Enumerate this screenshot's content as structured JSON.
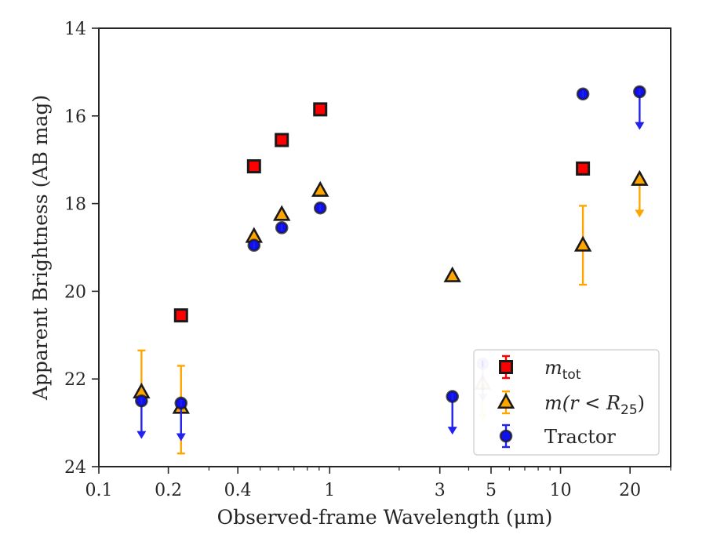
{
  "chart_data": {
    "type": "scatter",
    "xlabel": "Observed-frame Wavelength (μm)",
    "ylabel": "Apparent Brightness (AB mag)",
    "xscale": "log",
    "xlim": [
      0.1,
      30
    ],
    "ylim": [
      24,
      14
    ],
    "y_inverted": true,
    "xticks": [
      {
        "value": 0.1,
        "label": "0.1"
      },
      {
        "value": 0.2,
        "label": "0.2"
      },
      {
        "value": 0.4,
        "label": "0.4"
      },
      {
        "value": 1,
        "label": "1"
      },
      {
        "value": 3,
        "label": "3"
      },
      {
        "value": 5,
        "label": "5"
      },
      {
        "value": 10,
        "label": "10"
      },
      {
        "value": 20,
        "label": "20"
      }
    ],
    "yticks": [
      {
        "value": 14,
        "label": "14"
      },
      {
        "value": 16,
        "label": "16"
      },
      {
        "value": 18,
        "label": "18"
      },
      {
        "value": 20,
        "label": "20"
      },
      {
        "value": 22,
        "label": "22"
      },
      {
        "value": 24,
        "label": "24"
      }
    ],
    "legend_position": "lower-right",
    "series": [
      {
        "name": "m_tot",
        "legend_main": "m",
        "legend_sub": "tot",
        "marker": "square",
        "face_color": "#ff0000",
        "edge_color": "#1a1a1a",
        "error_color": "#ff0000",
        "points": [
          {
            "x": 0.227,
            "y": 20.55
          },
          {
            "x": 0.47,
            "y": 17.15
          },
          {
            "x": 0.62,
            "y": 16.55
          },
          {
            "x": 0.91,
            "y": 15.85
          },
          {
            "x": 12.5,
            "y": 17.2
          }
        ]
      },
      {
        "name": "m(r<R_25)",
        "legend_main": "m(r < R",
        "legend_sub": "25",
        "legend_tail": ")",
        "marker": "triangle",
        "face_color": "#ffa500",
        "edge_color": "#1a1a1a",
        "error_color": "#ffa500",
        "points": [
          {
            "x": 0.153,
            "y": 22.3,
            "yerr_low": 21.35,
            "yerr_high": 22.3
          },
          {
            "x": 0.227,
            "y": 22.65,
            "yerr_low": 21.7,
            "yerr_high": 23.7
          },
          {
            "x": 0.47,
            "y": 18.75
          },
          {
            "x": 0.62,
            "y": 18.25
          },
          {
            "x": 0.91,
            "y": 17.7
          },
          {
            "x": 3.4,
            "y": 19.65
          },
          {
            "x": 4.6,
            "y": 22.1,
            "upper_limit": true,
            "faded": true,
            "arrow_to": 22.95
          },
          {
            "x": 12.5,
            "y": 18.95,
            "yerr_low": 18.05,
            "yerr_high": 19.85
          },
          {
            "x": 22,
            "y": 17.45,
            "upper_limit": true,
            "arrow_to": 18.3
          }
        ]
      },
      {
        "name": "Tractor",
        "legend_main": "Tractor",
        "marker": "circle",
        "face_color": "#1010ee",
        "edge_color": "#1a1a1a",
        "error_color": "#2222ee",
        "points": [
          {
            "x": 0.153,
            "y": 22.5,
            "upper_limit": true,
            "arrow_to": 23.35
          },
          {
            "x": 0.227,
            "y": 22.55,
            "upper_limit": true,
            "arrow_to": 23.4
          },
          {
            "x": 0.47,
            "y": 18.95
          },
          {
            "x": 0.62,
            "y": 18.55
          },
          {
            "x": 0.91,
            "y": 18.1
          },
          {
            "x": 3.4,
            "y": 22.4,
            "upper_limit": true,
            "arrow_to": 23.25
          },
          {
            "x": 4.6,
            "y": 21.65,
            "upper_limit": true,
            "faded": true,
            "arrow_to": 22.5
          },
          {
            "x": 12.5,
            "y": 15.5
          },
          {
            "x": 22,
            "y": 15.45,
            "upper_limit": true,
            "arrow_to": 16.3
          }
        ]
      }
    ]
  }
}
